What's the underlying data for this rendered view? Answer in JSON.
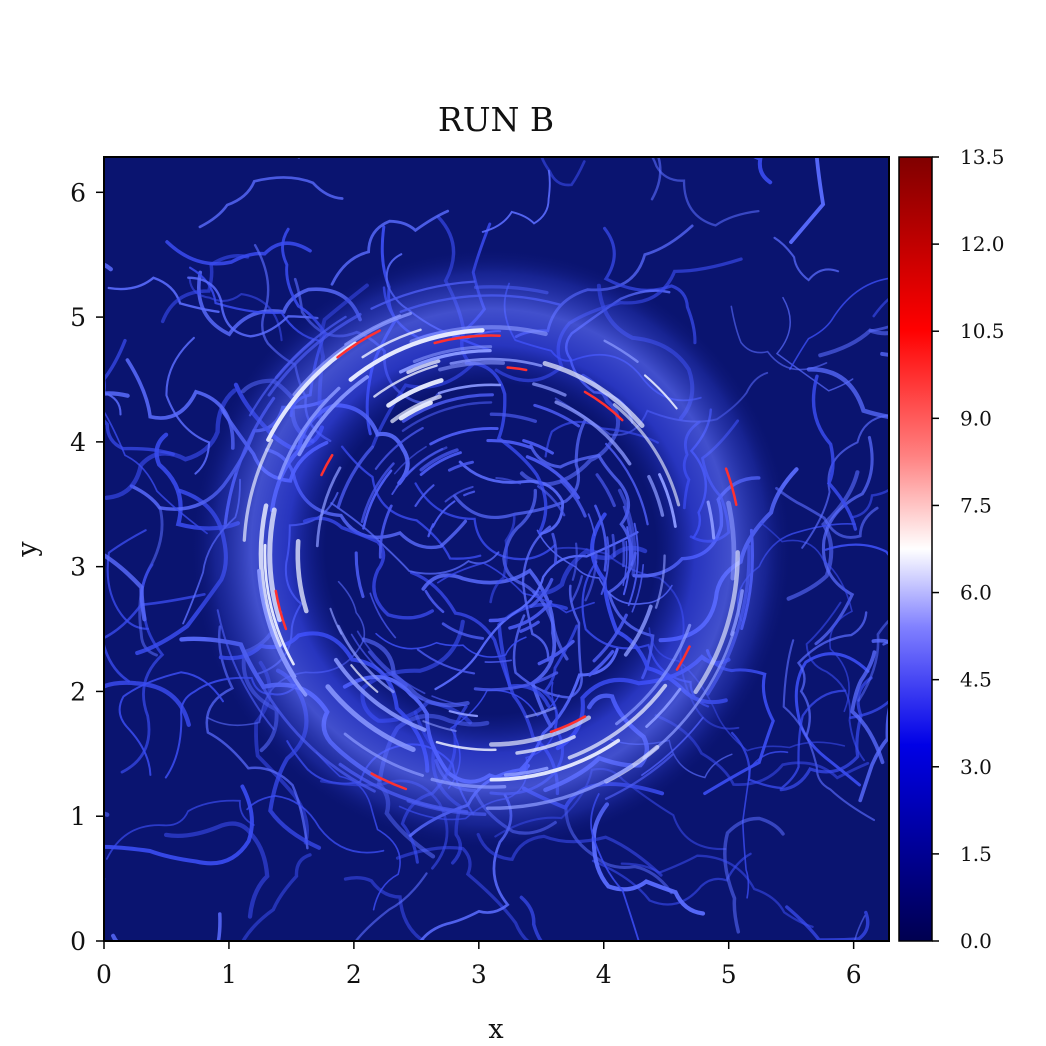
{
  "chart_data": {
    "type": "heatmap",
    "title": "RUN B",
    "xlabel": "x",
    "ylabel": "y",
    "xlim": [
      0,
      6.283
    ],
    "ylim": [
      0,
      6.283
    ],
    "xticks": [
      0,
      1,
      2,
      3,
      4,
      5,
      6
    ],
    "yticks": [
      0,
      1,
      2,
      3,
      4,
      5,
      6
    ],
    "colorbar": {
      "min": 0.0,
      "max": 13.5,
      "ticks": [
        "0.0",
        "1.5",
        "3.0",
        "4.5",
        "6.0",
        "7.5",
        "9.0",
        "10.5",
        "12.0",
        "13.5"
      ],
      "colormap": "seismic",
      "colors": [
        "#000050",
        "#0000e6",
        "#8080ff",
        "#ffffff",
        "#ff8080",
        "#ff0000",
        "#800000"
      ]
    },
    "field_description_values": {
      "background_level": 1.2,
      "ring_center": [
        3.1,
        3.1
      ],
      "ring_inner_radius": 1.3,
      "ring_outer_radius": 2.05,
      "ring_peak_level": 13.0
    }
  }
}
